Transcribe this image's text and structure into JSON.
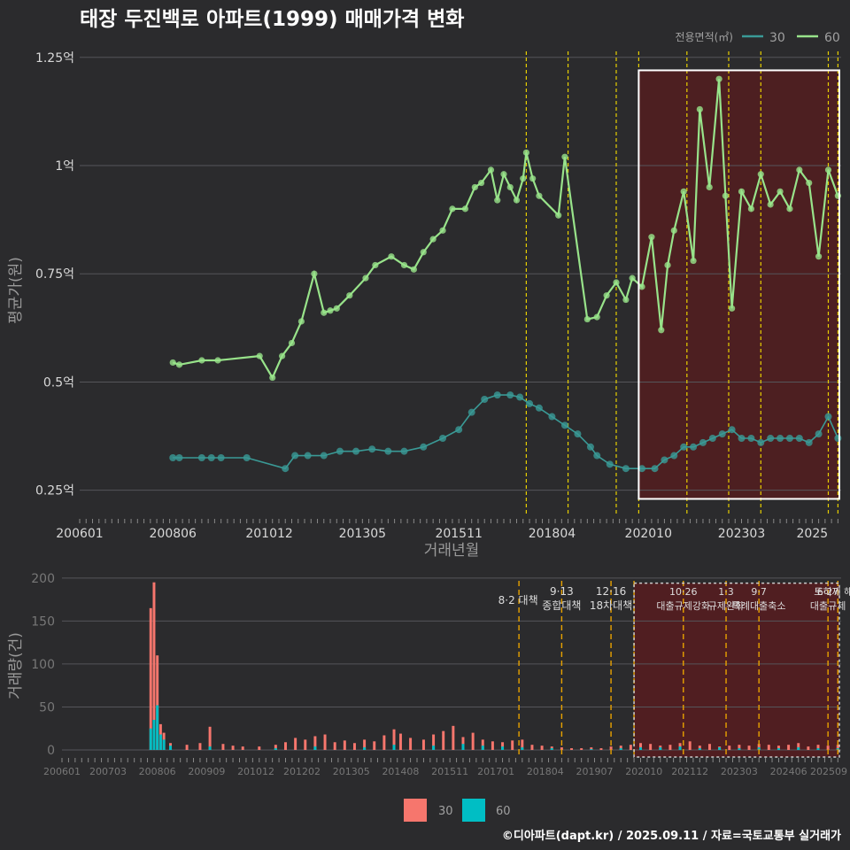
{
  "title": "태장 두진백로 아파트(1999) 매매가격 변화",
  "footer": "©디아파트(dapt.kr) / 2025.09.11 / 자료=국토교통부 실거래가",
  "colors": {
    "background": "#2b2b2d",
    "grid": "#55555a",
    "series_30_price": "#3a9a96",
    "series_60_price": "#98e38a",
    "series_30_volume": "#f6766d",
    "series_60_volume": "#00bec4",
    "policy_line": "#e8d000",
    "policy_line_bottom": "#e8a200",
    "highlight_fill": "#5a1c1e",
    "highlight_border": "#ffffff",
    "title_text": "#ffffff",
    "axis_text": "#d8d8d8",
    "axis_title": "#9a9a9a"
  },
  "chart_data": [
    {
      "type": "line",
      "title": "태장 두진백로 아파트(1999) 매매가격 변화",
      "xlabel": "거래년월",
      "ylabel": "평균가(원)",
      "legend": {
        "title": "전용면적(㎡)",
        "position": "top-right",
        "labels": [
          "30",
          "60"
        ]
      },
      "x_ticks": [
        "200601",
        "200806",
        "201012",
        "201305",
        "201511",
        "201804",
        "202010",
        "202303",
        "2025"
      ],
      "y_ticks": [
        "0.25억",
        "0.5억",
        "0.75억",
        "1억",
        "1.25억"
      ],
      "y_tick_values": [
        0.25,
        0.5,
        0.75,
        1.0,
        1.25
      ],
      "ylim": [
        0.19,
        1.27
      ],
      "xlim": [
        "2006-01",
        "2025-09"
      ],
      "grid": true,
      "series": [
        {
          "name": "30",
          "x": [
            "2008-06",
            "2008-08",
            "2009-03",
            "2009-06",
            "2009-09",
            "2010-05",
            "2011-05",
            "2011-08",
            "2011-12",
            "2012-05",
            "2012-10",
            "2013-03",
            "2013-08",
            "2014-01",
            "2014-06",
            "2014-12",
            "2015-06",
            "2015-11",
            "2016-03",
            "2016-07",
            "2016-11",
            "2017-03",
            "2017-06",
            "2017-09",
            "2017-12",
            "2018-04",
            "2018-08",
            "2018-12",
            "2019-04",
            "2019-06",
            "2019-10",
            "2020-03",
            "2020-08",
            "2020-12",
            "2021-03",
            "2021-06",
            "2021-09",
            "2021-12",
            "2022-03",
            "2022-06",
            "2022-09",
            "2022-12",
            "2023-03",
            "2023-06",
            "2023-09",
            "2023-12",
            "2024-03",
            "2024-06",
            "2024-09",
            "2024-12",
            "2025-03",
            "2025-06",
            "2025-09"
          ],
          "values": [
            0.325,
            0.325,
            0.325,
            0.325,
            0.325,
            0.325,
            0.3,
            0.33,
            0.33,
            0.33,
            0.34,
            0.34,
            0.345,
            0.34,
            0.34,
            0.35,
            0.37,
            0.39,
            0.43,
            0.46,
            0.47,
            0.47,
            0.465,
            0.45,
            0.44,
            0.42,
            0.4,
            0.38,
            0.35,
            0.33,
            0.31,
            0.3,
            0.3,
            0.3,
            0.32,
            0.33,
            0.35,
            0.35,
            0.36,
            0.37,
            0.38,
            0.39,
            0.37,
            0.37,
            0.36,
            0.37,
            0.37,
            0.37,
            0.37,
            0.36,
            0.38,
            0.42,
            0.37
          ]
        },
        {
          "name": "60",
          "x": [
            "2008-06",
            "2008-08",
            "2009-03",
            "2009-08",
            "2010-09",
            "2011-01",
            "2011-04",
            "2011-07",
            "2011-10",
            "2012-02",
            "2012-05",
            "2012-07",
            "2012-09",
            "2013-01",
            "2013-06",
            "2013-09",
            "2014-02",
            "2014-06",
            "2014-09",
            "2014-12",
            "2015-03",
            "2015-06",
            "2015-09",
            "2016-01",
            "2016-04",
            "2016-06",
            "2016-09",
            "2016-11",
            "2017-01",
            "2017-03",
            "2017-05",
            "2017-07",
            "2017-08",
            "2017-10",
            "2017-12",
            "2018-06",
            "2018-08",
            "2019-03",
            "2019-06",
            "2019-09",
            "2019-12",
            "2020-03",
            "2020-05",
            "2020-08",
            "2020-11",
            "2021-02",
            "2021-04",
            "2021-06",
            "2021-09",
            "2021-12",
            "2022-02",
            "2022-05",
            "2022-08",
            "2022-10",
            "2022-12",
            "2023-03",
            "2023-06",
            "2023-09",
            "2023-12",
            "2024-03",
            "2024-06",
            "2024-09",
            "2024-12",
            "2025-03",
            "2025-06",
            "2025-09"
          ],
          "values": [
            0.545,
            0.54,
            0.55,
            0.55,
            0.56,
            0.51,
            0.56,
            0.59,
            0.64,
            0.75,
            0.66,
            0.665,
            0.67,
            0.7,
            0.74,
            0.77,
            0.79,
            0.77,
            0.76,
            0.8,
            0.83,
            0.85,
            0.9,
            0.9,
            0.95,
            0.96,
            0.99,
            0.92,
            0.98,
            0.95,
            0.92,
            0.97,
            1.03,
            0.97,
            0.93,
            0.885,
            1.02,
            0.645,
            0.65,
            0.7,
            0.73,
            0.69,
            0.74,
            0.72,
            0.835,
            0.62,
            0.77,
            0.85,
            0.94,
            0.78,
            1.13,
            0.95,
            1.2,
            0.93,
            0.67,
            0.94,
            0.9,
            0.98,
            0.91,
            0.94,
            0.9,
            0.99,
            0.96,
            0.79,
            0.99,
            0.93
          ]
        }
      ],
      "policy_events": [
        "2017-08",
        "2018-09",
        "2019-12",
        "2020-07",
        "2021-10",
        "2022-11",
        "2023-09",
        "2025-06",
        "2025-09"
      ],
      "highlight_range": [
        "2020-07",
        "2025-09"
      ],
      "highlight_y_range": [
        0.23,
        1.22
      ]
    },
    {
      "type": "bar",
      "ylabel": "거래량(건)",
      "x_ticks": [
        "200601",
        "200703",
        "200806",
        "200909",
        "201012",
        "201202",
        "201305",
        "201408",
        "201511",
        "201701",
        "201804",
        "201907",
        "202010",
        "202112",
        "202303",
        "202406",
        "202509"
      ],
      "y_ticks": [
        "0",
        "50",
        "100",
        "150",
        "200"
      ],
      "y_tick_values": [
        0,
        50,
        100,
        150,
        200
      ],
      "ylim": [
        0,
        205
      ],
      "legend": {
        "position": "bottom",
        "labels": [
          "30",
          "60"
        ]
      },
      "annotations": [
        {
          "date": "2017-08",
          "lines": [
            "8·2 대책"
          ]
        },
        {
          "date": "2018-09",
          "lines": [
            "9·13",
            "종합대책"
          ]
        },
        {
          "date": "2019-12",
          "lines": [
            "12·16",
            "18차대책"
          ]
        },
        {
          "date": "2020-07",
          "lines": []
        },
        {
          "date": "2021-10",
          "lines": [
            "10·26",
            "대출규제강화"
          ]
        },
        {
          "date": "2022-11",
          "lines": [
            "1·3",
            "규제완화"
          ]
        },
        {
          "date": "2023-09",
          "lines": [
            "9·7",
            "특례대출축소"
          ]
        },
        {
          "date": "2025-06",
          "lines": [
            "6·27",
            "대출규제"
          ]
        },
        {
          "date": "2025-09",
          "lines": [
            "토허제 해제"
          ]
        }
      ],
      "highlight_range": [
        "2020-07",
        "2025-09"
      ],
      "series": [
        {
          "name": "30",
          "x": [
            "2008-04",
            "2008-05",
            "2008-06",
            "2008-07",
            "2008-08",
            "2008-10",
            "2009-03",
            "2009-07",
            "2009-10",
            "2010-02",
            "2010-05",
            "2010-08",
            "2011-01",
            "2011-06",
            "2011-09",
            "2011-12",
            "2012-03",
            "2012-06",
            "2012-09",
            "2012-12",
            "2013-03",
            "2013-06",
            "2013-09",
            "2013-12",
            "2014-03",
            "2014-06",
            "2014-08",
            "2014-11",
            "2015-03",
            "2015-06",
            "2015-09",
            "2015-12",
            "2016-03",
            "2016-06",
            "2016-09",
            "2016-12",
            "2017-03",
            "2017-06",
            "2017-09",
            "2017-12",
            "2018-03",
            "2018-06",
            "2018-09",
            "2018-12",
            "2019-03",
            "2019-06",
            "2019-09",
            "2019-12",
            "2020-03",
            "2020-06",
            "2020-09",
            "2020-12",
            "2021-03",
            "2021-06",
            "2021-09",
            "2021-12",
            "2022-03",
            "2022-06",
            "2022-09",
            "2022-12",
            "2023-03",
            "2023-06",
            "2023-09",
            "2023-12",
            "2024-03",
            "2024-06",
            "2024-09",
            "2024-12",
            "2025-03",
            "2025-06",
            "2025-09"
          ],
          "values": [
            165,
            195,
            110,
            30,
            20,
            8,
            6,
            8,
            27,
            7,
            5,
            4,
            4,
            6,
            9,
            14,
            12,
            16,
            18,
            9,
            11,
            8,
            12,
            10,
            17,
            24,
            19,
            14,
            12,
            18,
            22,
            28,
            15,
            20,
            12,
            10,
            9,
            11,
            12,
            6,
            5,
            4,
            3,
            2,
            2,
            3,
            2,
            4,
            5,
            6,
            8,
            7,
            5,
            6,
            8,
            10,
            5,
            7,
            4,
            5,
            6,
            5,
            7,
            6,
            5,
            6,
            8,
            4,
            6,
            5,
            6
          ]
        },
        {
          "name": "60",
          "x": [
            "2008-04",
            "2008-05",
            "2008-06",
            "2008-07",
            "2008-08",
            "2008-10",
            "2009-10",
            "2011-06",
            "2012-06",
            "2013-09",
            "2014-06",
            "2015-06",
            "2016-03",
            "2016-09",
            "2017-03",
            "2017-09",
            "2018-06",
            "2019-06",
            "2020-03",
            "2020-09",
            "2021-03",
            "2021-09",
            "2022-03",
            "2022-09",
            "2023-03",
            "2023-09",
            "2024-03",
            "2024-09",
            "2025-03",
            "2025-09"
          ],
          "values": [
            25,
            35,
            52,
            18,
            12,
            5,
            4,
            2,
            4,
            3,
            6,
            5,
            7,
            5,
            4,
            3,
            2,
            1,
            2,
            3,
            3,
            4,
            2,
            3,
            2,
            3,
            2,
            3,
            2,
            2
          ]
        }
      ]
    }
  ]
}
